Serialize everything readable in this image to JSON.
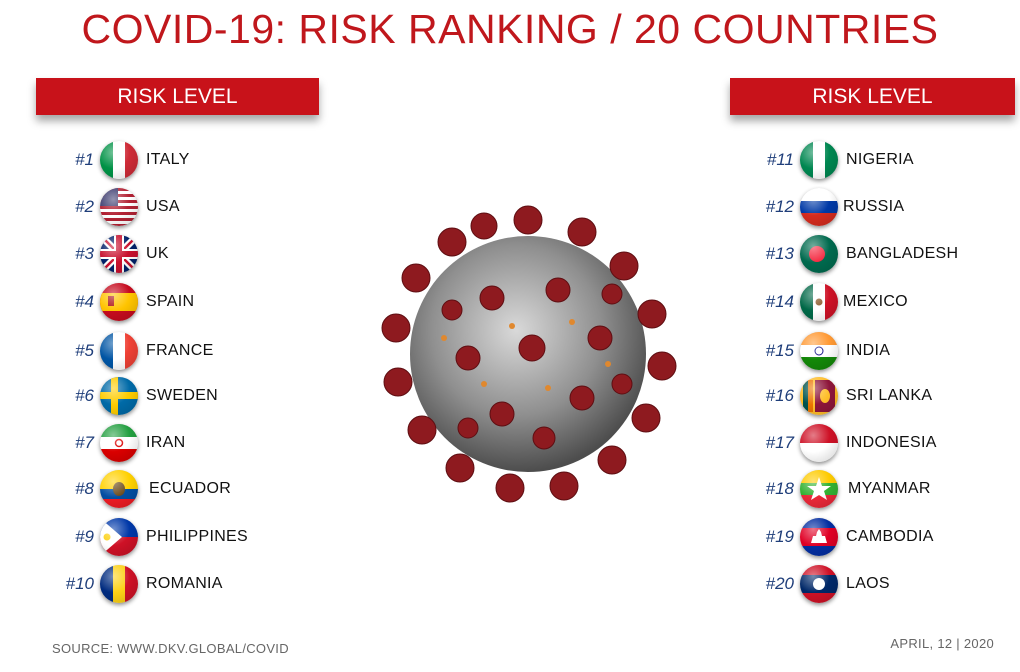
{
  "title": "COVID-19: RISK RANKING / 20 COUNTRIES",
  "left_header": "RISK LEVEL",
  "right_header": "RISK LEVEL",
  "left_list": [
    {
      "rank": "#1",
      "country": "ITALY",
      "flag_icon": "italy-flag-icon"
    },
    {
      "rank": "#2",
      "country": "USA",
      "flag_icon": "usa-flag-icon"
    },
    {
      "rank": "#3",
      "country": "UK",
      "flag_icon": "uk-flag-icon"
    },
    {
      "rank": "#4",
      "country": "SPAIN",
      "flag_icon": "spain-flag-icon"
    },
    {
      "rank": "#5",
      "country": "FRANCE",
      "flag_icon": "france-flag-icon"
    },
    {
      "rank": "#6",
      "country": "SWEDEN",
      "flag_icon": "sweden-flag-icon"
    },
    {
      "rank": "#7",
      "country": "IRAN",
      "flag_icon": "iran-flag-icon"
    },
    {
      "rank": "#8",
      "country": "ECUADOR",
      "flag_icon": "ecuador-flag-icon"
    },
    {
      "rank": "#9",
      "country": "PHILIPPINES",
      "flag_icon": "philippines-flag-icon"
    },
    {
      "rank": "#10",
      "country": "ROMANIA",
      "flag_icon": "romania-flag-icon"
    }
  ],
  "right_list": [
    {
      "rank": "#11",
      "country": "NIGERIA",
      "flag_icon": "nigeria-flag-icon"
    },
    {
      "rank": "#12",
      "country": "RUSSIA",
      "flag_icon": "russia-flag-icon"
    },
    {
      "rank": "#13",
      "country": "BANGLADESH",
      "flag_icon": "bangladesh-flag-icon"
    },
    {
      "rank": "#14",
      "country": "MEXICO",
      "flag_icon": "mexico-flag-icon"
    },
    {
      "rank": "#15",
      "country": "INDIA",
      "flag_icon": "india-flag-icon"
    },
    {
      "rank": "#16",
      "country": "SRI LANKA",
      "flag_icon": "sri-lanka-flag-icon"
    },
    {
      "rank": "#17",
      "country": "INDONESIA",
      "flag_icon": "indonesia-flag-icon"
    },
    {
      "rank": "#18",
      "country": "MYANMAR",
      "flag_icon": "myanmar-flag-icon"
    },
    {
      "rank": "#19",
      "country": "CAMBODIA",
      "flag_icon": "cambodia-flag-icon"
    },
    {
      "rank": "#20",
      "country": "LAOS",
      "flag_icon": "laos-flag-icon"
    }
  ],
  "source": "SOURCE: WWW.DKV.GLOBAL/COVID",
  "date": "APRIL, 12 | 2020",
  "colors": {
    "accent": "#c8121a",
    "title": "#c0171c",
    "rank": "#1f3e7a"
  }
}
